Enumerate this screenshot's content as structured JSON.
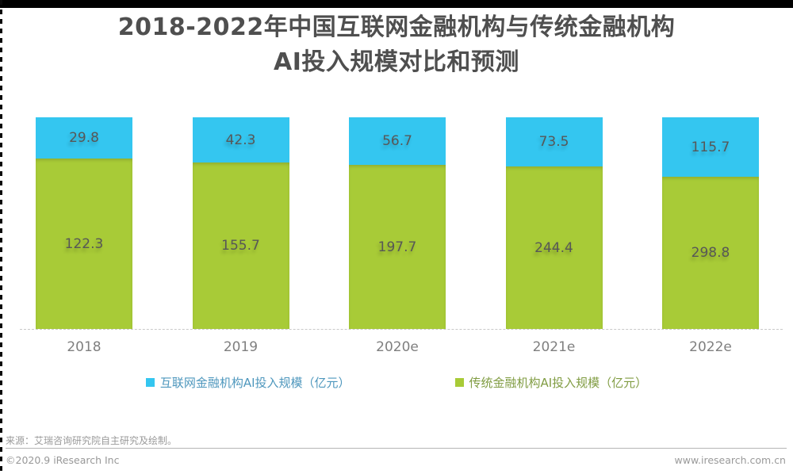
{
  "title": {
    "line1": "2018-2022年中国互联网金融机构与传统金融机构",
    "line2": "AI投入规模对比和预测"
  },
  "chart_data": {
    "type": "bar",
    "subtype": "percent-stacked-column",
    "categories": [
      "2018",
      "2019",
      "2020e",
      "2021e",
      "2022e"
    ],
    "series": [
      {
        "name": "互联网金融机构AI投入规模（亿元）",
        "color": "#34C6F0",
        "text_color": "#4E97BD",
        "values": [
          29.8,
          42.3,
          56.7,
          73.5,
          115.7
        ]
      },
      {
        "name": "传统金融机构AI投入规模（亿元）",
        "color": "#A8CB37",
        "text_color": "#809C42",
        "values": [
          122.3,
          155.7,
          197.7,
          244.4,
          298.8
        ]
      }
    ],
    "value_labels_shown": true,
    "value_label_color": "#575757",
    "axis_label_color": "#7f7f7f",
    "gridlines": false,
    "legend_position": "bottom",
    "bars_normalized_to_equal_height": true
  },
  "footer": {
    "source": "来源：艾瑞咨询研究院自主研究及绘制。",
    "copyright": "©2020.9 iResearch Inc",
    "website": "www.iresearch.com.cn"
  }
}
